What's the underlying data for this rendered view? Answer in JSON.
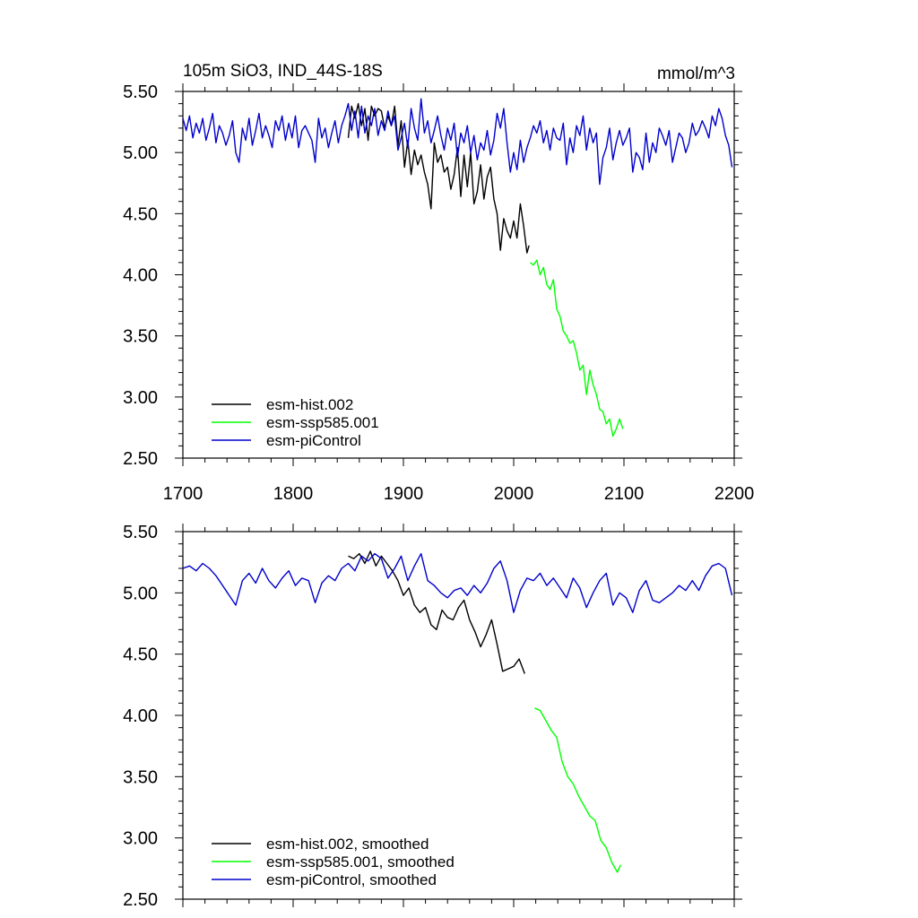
{
  "chart_data": [
    {
      "type": "line",
      "title": "105m SiO3, IND_44S-18S",
      "units": "mmol/m^3",
      "xlim": [
        1700,
        2200
      ],
      "ylim": [
        2.5,
        5.5
      ],
      "x_ticks": [
        "1700",
        "1800",
        "1900",
        "2000",
        "2100",
        "2200"
      ],
      "y_ticks": [
        "2.50",
        "3.00",
        "3.50",
        "4.00",
        "4.50",
        "5.00",
        "5.50"
      ],
      "legend_position": "bottom-left",
      "series": [
        {
          "name": "esm-hist.002",
          "color": "#000000",
          "x": [
            1850,
            1853,
            1856,
            1859,
            1862,
            1865,
            1868,
            1871,
            1874,
            1877,
            1880,
            1883,
            1886,
            1889,
            1892,
            1895,
            1898,
            1901,
            1904,
            1907,
            1910,
            1913,
            1916,
            1919,
            1922,
            1925,
            1928,
            1931,
            1934,
            1937,
            1940,
            1943,
            1946,
            1949,
            1952,
            1955,
            1958,
            1961,
            1964,
            1967,
            1970,
            1973,
            1976,
            1979,
            1982,
            1985,
            1988,
            1991,
            1994,
            1997,
            2000,
            2003,
            2006,
            2009,
            2012,
            2014
          ],
          "values": [
            5.12,
            5.38,
            5.28,
            5.4,
            5.22,
            5.36,
            5.1,
            5.38,
            5.3,
            5.36,
            5.34,
            5.2,
            5.3,
            5.22,
            5.38,
            5.06,
            5.26,
            4.88,
            5.1,
            4.82,
            5.02,
            4.9,
            4.98,
            4.84,
            4.74,
            4.54,
            5.08,
            4.92,
            4.98,
            4.84,
            4.88,
            4.7,
            4.82,
            5.04,
            4.64,
            4.98,
            4.72,
            5.0,
            4.58,
            4.68,
            4.9,
            4.62,
            4.8,
            4.88,
            4.62,
            4.5,
            4.2,
            4.46,
            4.36,
            4.3,
            4.44,
            4.3,
            4.58,
            4.4,
            4.18,
            4.24
          ]
        },
        {
          "name": "esm-ssp585.001",
          "color": "#00ff00",
          "x": [
            2015,
            2018,
            2021,
            2024,
            2027,
            2030,
            2033,
            2036,
            2039,
            2042,
            2045,
            2048,
            2051,
            2054,
            2057,
            2060,
            2063,
            2066,
            2069,
            2072,
            2075,
            2078,
            2081,
            2084,
            2087,
            2090,
            2093,
            2096,
            2099
          ],
          "values": [
            4.1,
            4.08,
            4.12,
            4.0,
            4.06,
            3.92,
            3.88,
            3.96,
            3.72,
            3.66,
            3.54,
            3.5,
            3.44,
            3.46,
            3.36,
            3.22,
            3.26,
            3.02,
            3.22,
            3.1,
            3.02,
            2.9,
            2.88,
            2.78,
            2.82,
            2.68,
            2.74,
            2.82,
            2.74
          ]
        },
        {
          "name": "esm-piControl",
          "color": "#0000cc",
          "x": [
            1700,
            1703,
            1706,
            1709,
            1712,
            1715,
            1718,
            1721,
            1724,
            1727,
            1730,
            1733,
            1736,
            1739,
            1742,
            1745,
            1748,
            1751,
            1754,
            1757,
            1760,
            1763,
            1766,
            1769,
            1772,
            1775,
            1778,
            1781,
            1784,
            1787,
            1790,
            1793,
            1796,
            1799,
            1802,
            1805,
            1808,
            1811,
            1814,
            1817,
            1820,
            1823,
            1826,
            1829,
            1832,
            1835,
            1838,
            1841,
            1844,
            1847,
            1850,
            1853,
            1856,
            1859,
            1862,
            1865,
            1868,
            1871,
            1874,
            1877,
            1880,
            1883,
            1886,
            1889,
            1892,
            1895,
            1898,
            1901,
            1904,
            1907,
            1910,
            1913,
            1916,
            1919,
            1922,
            1925,
            1928,
            1931,
            1934,
            1937,
            1940,
            1943,
            1946,
            1949,
            1952,
            1955,
            1958,
            1961,
            1964,
            1967,
            1970,
            1973,
            1976,
            1979,
            1982,
            1985,
            1988,
            1991,
            1994,
            1997,
            2000,
            2003,
            2006,
            2009,
            2012,
            2015,
            2018,
            2021,
            2024,
            2027,
            2030,
            2033,
            2036,
            2039,
            2042,
            2045,
            2048,
            2051,
            2054,
            2057,
            2060,
            2063,
            2066,
            2069,
            2072,
            2075,
            2078,
            2081,
            2084,
            2087,
            2090,
            2093,
            2096,
            2099,
            2102,
            2105,
            2108,
            2111,
            2114,
            2117,
            2120,
            2123,
            2126,
            2129,
            2132,
            2135,
            2138,
            2141,
            2144,
            2147,
            2150,
            2153,
            2156,
            2159,
            2162,
            2165,
            2168,
            2171,
            2174,
            2177,
            2180,
            2183,
            2186,
            2189,
            2192,
            2195,
            2198
          ],
          "values": [
            5.28,
            5.18,
            5.3,
            5.12,
            5.24,
            5.16,
            5.28,
            5.1,
            5.2,
            5.32,
            5.08,
            5.22,
            5.16,
            5.06,
            5.14,
            5.26,
            5.0,
            4.92,
            5.2,
            5.1,
            5.28,
            5.06,
            5.18,
            5.32,
            5.12,
            5.22,
            5.14,
            5.04,
            5.26,
            5.18,
            5.3,
            5.1,
            5.24,
            5.12,
            5.3,
            5.04,
            5.18,
            5.22,
            5.16,
            5.1,
            4.92,
            5.28,
            5.12,
            5.2,
            5.04,
            5.16,
            5.26,
            5.08,
            5.22,
            5.3,
            5.4,
            5.18,
            5.34,
            5.12,
            5.38,
            5.16,
            5.3,
            5.22,
            5.36,
            5.14,
            5.26,
            5.18,
            5.34,
            5.22,
            5.3,
            5.02,
            5.12,
            5.24,
            5.04,
            5.36,
            5.2,
            5.1,
            5.44,
            5.16,
            5.26,
            5.08,
            5.18,
            5.3,
            5.14,
            5.02,
            5.2,
            5.1,
            5.24,
            4.96,
            5.16,
            5.08,
            5.22,
            5.0,
            5.14,
            4.94,
            5.08,
            5.02,
            5.18,
            4.98,
            5.1,
            5.32,
            5.2,
            5.36,
            5.08,
            4.84,
            5.0,
            4.86,
            5.1,
            4.92,
            5.04,
            5.12,
            5.22,
            5.16,
            5.26,
            5.08,
            5.18,
            5.02,
            5.2,
            5.12,
            5.1,
            5.24,
            4.9,
            5.12,
            5.0,
            5.22,
            5.14,
            5.3,
            5.02,
            5.2,
            5.08,
            5.16,
            4.74,
            4.96,
            5.04,
            5.2,
            4.94,
            5.08,
            5.18,
            5.06,
            5.12,
            5.2,
            4.84,
            5.0,
            4.96,
            4.86,
            5.16,
            4.92,
            5.08,
            5.0,
            5.2,
            5.14,
            5.06,
            5.18,
            4.92,
            5.04,
            5.16,
            5.12,
            5.0,
            5.08,
            5.24,
            5.14,
            5.18,
            5.26,
            5.2,
            5.12,
            5.3,
            5.22,
            5.36,
            5.28,
            5.14,
            5.06,
            4.88
          ]
        }
      ]
    },
    {
      "type": "line",
      "xlim": [
        1700,
        2200
      ],
      "ylim": [
        2.5,
        5.5
      ],
      "y_ticks": [
        "2.50",
        "3.00",
        "3.50",
        "4.00",
        "4.50",
        "5.00",
        "5.50"
      ],
      "legend_position": "bottom-left",
      "series": [
        {
          "name": "esm-hist.002, smoothed",
          "color": "#000000",
          "x": [
            1850,
            1855,
            1860,
            1865,
            1870,
            1875,
            1880,
            1885,
            1890,
            1895,
            1900,
            1905,
            1910,
            1915,
            1920,
            1925,
            1930,
            1935,
            1940,
            1945,
            1950,
            1955,
            1960,
            1965,
            1970,
            1975,
            1980,
            1985,
            1990,
            1995,
            2000,
            2005,
            2010
          ],
          "values": [
            5.3,
            5.28,
            5.32,
            5.24,
            5.34,
            5.22,
            5.3,
            5.24,
            5.18,
            5.1,
            4.98,
            5.04,
            4.9,
            4.84,
            4.88,
            4.74,
            4.7,
            4.86,
            4.8,
            4.78,
            4.88,
            4.94,
            4.78,
            4.68,
            4.56,
            4.66,
            4.78,
            4.58,
            4.36,
            4.38,
            4.4,
            4.46,
            4.34
          ]
        },
        {
          "name": "esm-ssp585.001, smoothed",
          "color": "#00ff00",
          "x": [
            2019,
            2024,
            2029,
            2034,
            2039,
            2044,
            2049,
            2054,
            2059,
            2064,
            2069,
            2074,
            2079,
            2084,
            2089,
            2094,
            2097
          ],
          "values": [
            4.06,
            4.04,
            3.96,
            3.88,
            3.82,
            3.62,
            3.5,
            3.44,
            3.34,
            3.26,
            3.18,
            3.14,
            2.98,
            2.92,
            2.8,
            2.72,
            2.78
          ]
        },
        {
          "name": "esm-piControl, smoothed",
          "color": "#0000cc",
          "x": [
            1700,
            1706,
            1712,
            1718,
            1724,
            1730,
            1736,
            1742,
            1748,
            1754,
            1760,
            1766,
            1772,
            1778,
            1784,
            1790,
            1796,
            1802,
            1808,
            1814,
            1820,
            1826,
            1832,
            1838,
            1844,
            1850,
            1856,
            1862,
            1868,
            1874,
            1880,
            1886,
            1892,
            1898,
            1904,
            1910,
            1916,
            1922,
            1928,
            1934,
            1940,
            1946,
            1952,
            1958,
            1964,
            1970,
            1976,
            1982,
            1988,
            1994,
            2000,
            2006,
            2012,
            2018,
            2024,
            2030,
            2036,
            2042,
            2048,
            2054,
            2060,
            2066,
            2072,
            2078,
            2084,
            2090,
            2096,
            2102,
            2108,
            2114,
            2120,
            2126,
            2132,
            2138,
            2144,
            2150,
            2156,
            2162,
            2168,
            2174,
            2180,
            2186,
            2192,
            2198
          ],
          "values": [
            5.2,
            5.22,
            5.18,
            5.24,
            5.2,
            5.14,
            5.06,
            4.98,
            4.9,
            5.1,
            5.16,
            5.08,
            5.2,
            5.1,
            5.04,
            5.12,
            5.18,
            5.06,
            5.12,
            5.1,
            4.92,
            5.08,
            5.14,
            5.1,
            5.2,
            5.24,
            5.18,
            5.3,
            5.26,
            5.32,
            5.28,
            5.12,
            5.2,
            5.3,
            5.1,
            5.22,
            5.32,
            5.1,
            5.06,
            5.0,
            4.96,
            5.02,
            5.04,
            4.98,
            5.06,
            5.0,
            5.08,
            5.2,
            5.26,
            5.1,
            4.84,
            5.02,
            5.12,
            5.1,
            5.16,
            5.06,
            5.12,
            5.04,
            4.96,
            5.12,
            5.04,
            4.88,
            5.0,
            5.1,
            5.16,
            4.9,
            5.0,
            4.96,
            4.84,
            5.02,
            5.1,
            4.94,
            4.92,
            4.96,
            5.0,
            5.06,
            5.02,
            5.1,
            5.02,
            5.14,
            5.22,
            5.24,
            5.2,
            4.98
          ]
        }
      ]
    }
  ]
}
